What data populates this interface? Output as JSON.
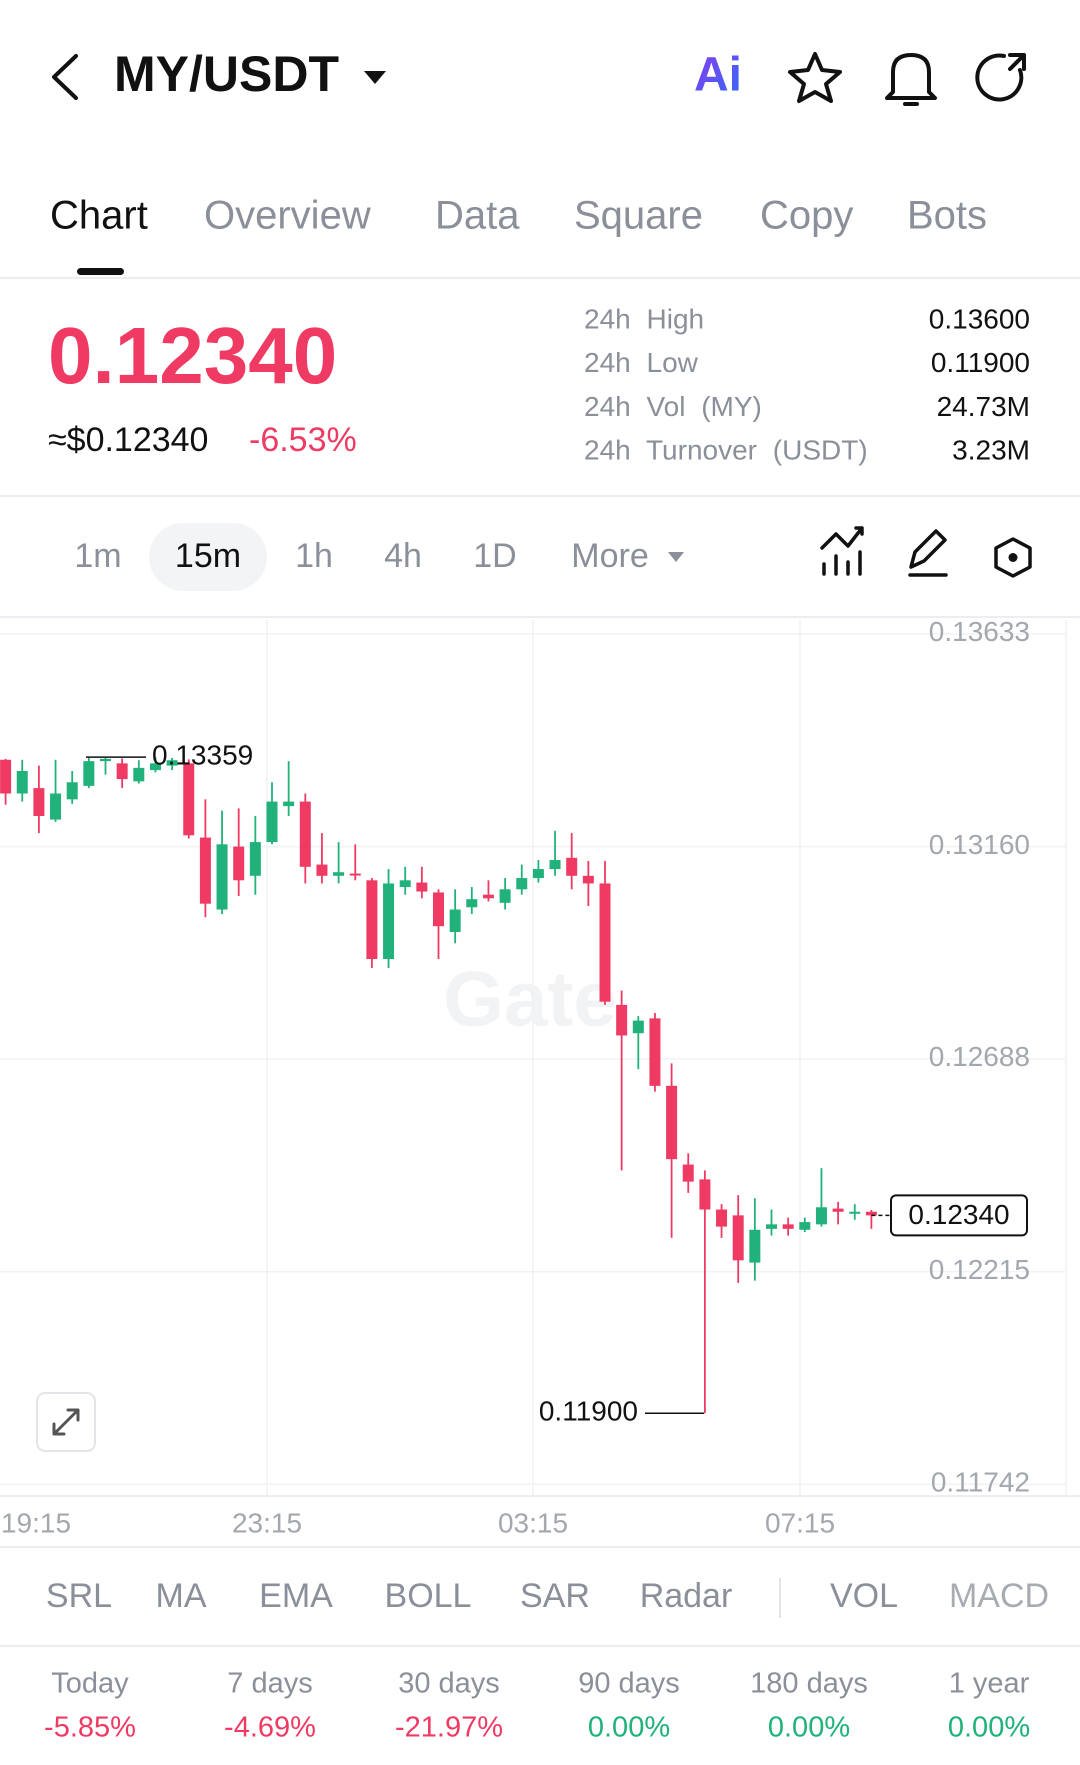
{
  "header": {
    "title": "MY/USDT",
    "ai_label": "Ai"
  },
  "tabs": [
    "Chart",
    "Overview",
    "Data",
    "Square",
    "Copy",
    "Bots"
  ],
  "ticker": {
    "price": {
      "value": 0.1234,
      "label": "0.12340"
    },
    "usd_price": "≈$0.12340",
    "change": "-6.53%",
    "stats": [
      {
        "label": "24h High",
        "value": "0.13600"
      },
      {
        "label": "24h Low",
        "value": "0.11900"
      },
      {
        "label": "24h Vol (MY)",
        "value": "24.73M"
      },
      {
        "label": "24h Turnover (USDT)",
        "value": "3.23M"
      }
    ]
  },
  "intervals": [
    "1m",
    "15m",
    "1h",
    "4h",
    "1D",
    "More"
  ],
  "selected_interval": "15m",
  "chart_data": {
    "type": "candlestick",
    "watermark": "Gate",
    "up_color": "#20b27a",
    "down_color": "#ef3b63",
    "grid": true,
    "ylim": [
      0.11716,
      0.13666
    ],
    "yticks": [
      0.13633,
      {
        "value": 0.1316,
        "label": "0.13160"
      },
      0.12688,
      0.12215,
      0.11742
    ],
    "x_labels": [
      "19:15",
      "23:15",
      "03:15",
      "07:15"
    ],
    "high_marker": 0.13359,
    "low_marker": {
      "value": 0.119,
      "label": "0.11900"
    },
    "last_price": {
      "value": 0.1234,
      "label": "0.12340"
    },
    "candles": [
      {
        "open": 0.13353,
        "high": 0.13355,
        "low": 0.13253,
        "close": 0.13278
      },
      {
        "open": 0.13278,
        "high": 0.13353,
        "low": 0.1326,
        "close": 0.13328
      },
      {
        "open": 0.1329,
        "high": 0.1334,
        "low": 0.1319,
        "close": 0.13228
      },
      {
        "open": 0.1322,
        "high": 0.13353,
        "low": 0.13215,
        "close": 0.13278
      },
      {
        "open": 0.13265,
        "high": 0.13328,
        "low": 0.13255,
        "close": 0.13303
      },
      {
        "open": 0.13295,
        "high": 0.13358,
        "low": 0.1329,
        "close": 0.1335
      },
      {
        "open": 0.1335,
        "high": 0.13357,
        "low": 0.1332,
        "close": 0.13355
      },
      {
        "open": 0.13345,
        "high": 0.13356,
        "low": 0.1329,
        "close": 0.1331
      },
      {
        "open": 0.13305,
        "high": 0.13352,
        "low": 0.133,
        "close": 0.13335
      },
      {
        "open": 0.1333,
        "high": 0.13359,
        "low": 0.13325,
        "close": 0.13345
      },
      {
        "open": 0.1334,
        "high": 0.13357,
        "low": 0.1333,
        "close": 0.13352
      },
      {
        "open": 0.13345,
        "high": 0.13354,
        "low": 0.13178,
        "close": 0.13185
      },
      {
        "open": 0.1318,
        "high": 0.13265,
        "low": 0.13003,
        "close": 0.13033
      },
      {
        "open": 0.1302,
        "high": 0.1324,
        "low": 0.1301,
        "close": 0.13165
      },
      {
        "open": 0.1316,
        "high": 0.13245,
        "low": 0.1305,
        "close": 0.13085
      },
      {
        "open": 0.13095,
        "high": 0.13228,
        "low": 0.13053,
        "close": 0.1317
      },
      {
        "open": 0.1317,
        "high": 0.13303,
        "low": 0.13165,
        "close": 0.1326
      },
      {
        "open": 0.1325,
        "high": 0.1335,
        "low": 0.13228,
        "close": 0.1326
      },
      {
        "open": 0.1326,
        "high": 0.13278,
        "low": 0.13078,
        "close": 0.13115
      },
      {
        "open": 0.1312,
        "high": 0.1319,
        "low": 0.13078,
        "close": 0.13095
      },
      {
        "open": 0.13095,
        "high": 0.1317,
        "low": 0.13078,
        "close": 0.13103
      },
      {
        "open": 0.131,
        "high": 0.13165,
        "low": 0.13085,
        "close": 0.13098
      },
      {
        "open": 0.13085,
        "high": 0.1309,
        "low": 0.1289,
        "close": 0.1291
      },
      {
        "open": 0.1291,
        "high": 0.1311,
        "low": 0.1289,
        "close": 0.13078
      },
      {
        "open": 0.1307,
        "high": 0.13115,
        "low": 0.13053,
        "close": 0.13085
      },
      {
        "open": 0.1308,
        "high": 0.13115,
        "low": 0.13045,
        "close": 0.1306
      },
      {
        "open": 0.13058,
        "high": 0.13065,
        "low": 0.1291,
        "close": 0.12983
      },
      {
        "open": 0.1297,
        "high": 0.13065,
        "low": 0.12945,
        "close": 0.1302
      },
      {
        "open": 0.13025,
        "high": 0.1307,
        "low": 0.1301,
        "close": 0.13043
      },
      {
        "open": 0.13053,
        "high": 0.13085,
        "low": 0.13038,
        "close": 0.13045
      },
      {
        "open": 0.13035,
        "high": 0.1309,
        "low": 0.1302,
        "close": 0.13065
      },
      {
        "open": 0.13065,
        "high": 0.1312,
        "low": 0.13053,
        "close": 0.1309
      },
      {
        "open": 0.1309,
        "high": 0.1313,
        "low": 0.1308,
        "close": 0.1311
      },
      {
        "open": 0.1311,
        "high": 0.13195,
        "low": 0.13095,
        "close": 0.1313
      },
      {
        "open": 0.13135,
        "high": 0.1319,
        "low": 0.13065,
        "close": 0.13095
      },
      {
        "open": 0.13095,
        "high": 0.13128,
        "low": 0.13028,
        "close": 0.13078
      },
      {
        "open": 0.13078,
        "high": 0.13128,
        "low": 0.12808,
        "close": 0.12815
      },
      {
        "open": 0.12808,
        "high": 0.1284,
        "low": 0.1244,
        "close": 0.1274
      },
      {
        "open": 0.12745,
        "high": 0.12783,
        "low": 0.12665,
        "close": 0.12773
      },
      {
        "open": 0.12778,
        "high": 0.1279,
        "low": 0.12615,
        "close": 0.12628
      },
      {
        "open": 0.12628,
        "high": 0.12678,
        "low": 0.1229,
        "close": 0.12465
      },
      {
        "open": 0.12453,
        "high": 0.12478,
        "low": 0.1239,
        "close": 0.12415
      },
      {
        "open": 0.1242,
        "high": 0.1244,
        "low": 0.119,
        "close": 0.12353
      },
      {
        "open": 0.12353,
        "high": 0.12365,
        "low": 0.1229,
        "close": 0.12315
      },
      {
        "open": 0.1234,
        "high": 0.12385,
        "low": 0.1219,
        "close": 0.1224
      },
      {
        "open": 0.12235,
        "high": 0.12378,
        "low": 0.12195,
        "close": 0.12308
      },
      {
        "open": 0.1231,
        "high": 0.12353,
        "low": 0.12295,
        "close": 0.1232
      },
      {
        "open": 0.1232,
        "high": 0.12335,
        "low": 0.12295,
        "close": 0.1231
      },
      {
        "open": 0.12308,
        "high": 0.12335,
        "low": 0.12303,
        "close": 0.12325
      },
      {
        "open": 0.1232,
        "high": 0.12445,
        "low": 0.12315,
        "close": 0.12358
      },
      {
        "open": 0.12355,
        "high": 0.1237,
        "low": 0.1232,
        "close": 0.12348
      },
      {
        "open": 0.12345,
        "high": 0.12365,
        "low": 0.1233,
        "close": 0.12348
      },
      {
        "open": 0.12348,
        "high": 0.12352,
        "low": 0.1231,
        "close": 0.1234
      }
    ]
  },
  "indicators": [
    "SRL",
    "MA",
    "EMA",
    "BOLL",
    "SAR",
    "Radar",
    "VOL",
    "MACD"
  ],
  "performance": [
    {
      "period": "Today",
      "change": "-5.85%"
    },
    {
      "period": "7 days",
      "change": "-4.69%"
    },
    {
      "period": "30 days",
      "change": "-21.97%"
    },
    {
      "period": "90 days",
      "change": "0.00%"
    },
    {
      "period": "180 days",
      "change": "0.00%"
    },
    {
      "period": "1 year",
      "change": "0.00%"
    }
  ]
}
